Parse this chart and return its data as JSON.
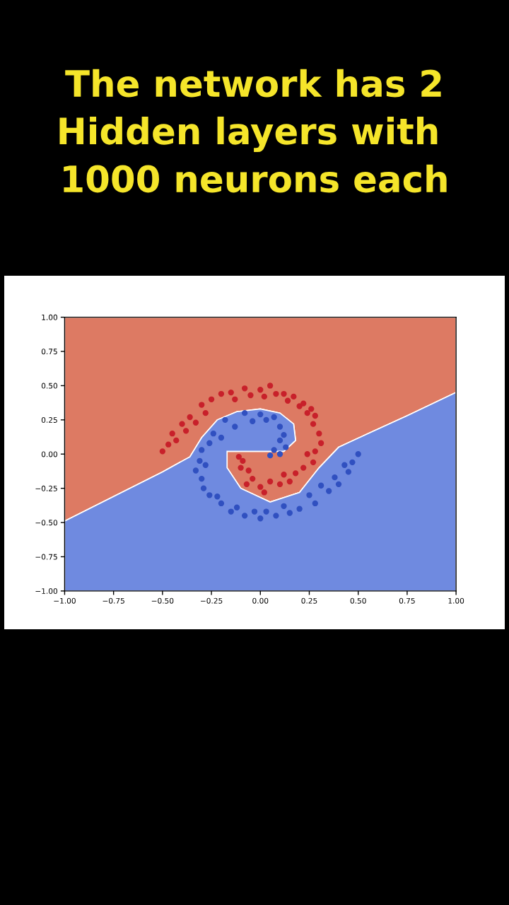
{
  "chart_data": {
    "type": "scatter",
    "title": "The network has 2\nHidden layers with \n1000 neurons each",
    "xlim": [
      -1,
      1
    ],
    "ylim": [
      -1,
      1
    ],
    "xticks": [
      {
        "value": -1,
        "label": "−1.00"
      },
      {
        "value": -0.75,
        "label": "−0.75"
      },
      {
        "value": -0.5,
        "label": "−0.50"
      },
      {
        "value": -0.25,
        "label": "−0.25"
      },
      {
        "value": 0,
        "label": "0.00"
      },
      {
        "value": 0.25,
        "label": "0.25"
      },
      {
        "value": 0.5,
        "label": "0.50"
      },
      {
        "value": 0.75,
        "label": "0.75"
      },
      {
        "value": 1,
        "label": "1.00"
      }
    ],
    "yticks": [
      {
        "value": -1,
        "label": "−1.00"
      },
      {
        "value": -0.75,
        "label": "−0.75"
      },
      {
        "value": -0.5,
        "label": "−0.50"
      },
      {
        "value": -0.25,
        "label": "−0.25"
      },
      {
        "value": 0,
        "label": "0.00"
      },
      {
        "value": 0.25,
        "label": "0.25"
      },
      {
        "value": 0.5,
        "label": "0.50"
      },
      {
        "value": 0.75,
        "label": "0.75"
      },
      {
        "value": 1,
        "label": "1.00"
      }
    ],
    "grid": false,
    "series": [
      {
        "type": "area",
        "color": "#dd7a63",
        "x": [
          -1,
          -0.75,
          -0.5,
          -0.36,
          -0.3,
          -0.22,
          -0.12,
          0,
          0.1,
          0.17,
          0.18,
          0.12,
          -0.17,
          -0.17,
          -0.1,
          0.05,
          0.2,
          0.3,
          0.4,
          0.55,
          0.75,
          1,
          1,
          -1
        ],
        "values": [
          -0.49,
          -0.31,
          -0.13,
          -0.02,
          0.12,
          0.25,
          0.31,
          0.33,
          0.3,
          0.22,
          0.1,
          0.02,
          0.02,
          -0.1,
          -0.25,
          -0.35,
          -0.28,
          -0.1,
          0.05,
          0.15,
          0.28,
          0.45,
          1,
          1
        ]
      },
      {
        "type": "area",
        "color": "#6f8ae0",
        "x": [
          -1,
          -0.75,
          -0.5,
          -0.36,
          -0.3,
          -0.22,
          -0.12,
          0,
          0.1,
          0.17,
          0.18,
          0.12,
          -0.17,
          -0.17,
          -0.1,
          0.05,
          0.2,
          0.3,
          0.4,
          0.55,
          0.75,
          1,
          1,
          -1
        ],
        "values": [
          -0.49,
          -0.31,
          -0.13,
          -0.02,
          0.12,
          0.25,
          0.31,
          0.33,
          0.3,
          0.22,
          0.1,
          0.02,
          0.02,
          -0.1,
          -0.25,
          -0.35,
          -0.28,
          -0.1,
          0.05,
          0.15,
          0.28,
          0.45,
          -1,
          -1
        ]
      },
      {
        "color": "#c8202a",
        "marker": "circle",
        "x": [
          -0.5,
          -0.47,
          -0.45,
          -0.43,
          -0.4,
          -0.38,
          -0.36,
          -0.33,
          -0.3,
          -0.28,
          -0.25,
          -0.2,
          -0.15,
          -0.13,
          -0.08,
          -0.05,
          0,
          0.02,
          0.05,
          0.08,
          0.12,
          0.14,
          0.17,
          0.2,
          0.22,
          0.24,
          0.26,
          0.28,
          0.27,
          0.3,
          0.31,
          0.28,
          0.27,
          0.24,
          0.22,
          0.18,
          0.15,
          0.12,
          0.1,
          0.05,
          0.02,
          0.0,
          -0.04,
          -0.07,
          -0.06,
          -0.1,
          -0.09,
          -0.11
        ],
        "values": [
          0.02,
          0.07,
          0.15,
          0.1,
          0.22,
          0.17,
          0.27,
          0.23,
          0.36,
          0.3,
          0.4,
          0.44,
          0.45,
          0.4,
          0.48,
          0.43,
          0.47,
          0.42,
          0.5,
          0.44,
          0.44,
          0.39,
          0.42,
          0.35,
          0.37,
          0.3,
          0.33,
          0.28,
          0.22,
          0.15,
          0.08,
          0.02,
          -0.06,
          0.0,
          -0.1,
          -0.14,
          -0.2,
          -0.15,
          -0.22,
          -0.2,
          -0.28,
          -0.24,
          -0.18,
          -0.22,
          -0.12,
          -0.1,
          -0.05,
          -0.02
        ]
      },
      {
        "color": "#3050c0",
        "marker": "circle",
        "x": [
          0.5,
          0.47,
          0.45,
          0.43,
          0.4,
          0.38,
          0.35,
          0.31,
          0.28,
          0.25,
          0.2,
          0.15,
          0.12,
          0.08,
          0.03,
          0.0,
          -0.03,
          -0.08,
          -0.12,
          -0.15,
          -0.2,
          -0.22,
          -0.26,
          -0.29,
          -0.3,
          -0.33,
          -0.31,
          -0.28,
          -0.3,
          -0.26,
          -0.24,
          -0.2,
          -0.18,
          -0.13,
          -0.08,
          -0.04,
          0.0,
          0.03,
          0.07,
          0.1,
          0.12,
          0.1,
          0.13,
          0.1,
          0.07,
          0.05
        ],
        "values": [
          0.0,
          -0.06,
          -0.13,
          -0.08,
          -0.22,
          -0.17,
          -0.27,
          -0.23,
          -0.36,
          -0.3,
          -0.4,
          -0.43,
          -0.38,
          -0.45,
          -0.42,
          -0.47,
          -0.42,
          -0.45,
          -0.39,
          -0.42,
          -0.36,
          -0.31,
          -0.3,
          -0.25,
          -0.18,
          -0.12,
          -0.05,
          -0.08,
          0.03,
          0.08,
          0.15,
          0.12,
          0.25,
          0.2,
          0.3,
          0.24,
          0.29,
          0.25,
          0.27,
          0.2,
          0.14,
          0.1,
          0.05,
          0.0,
          0.03,
          -0.01
        ]
      }
    ]
  }
}
